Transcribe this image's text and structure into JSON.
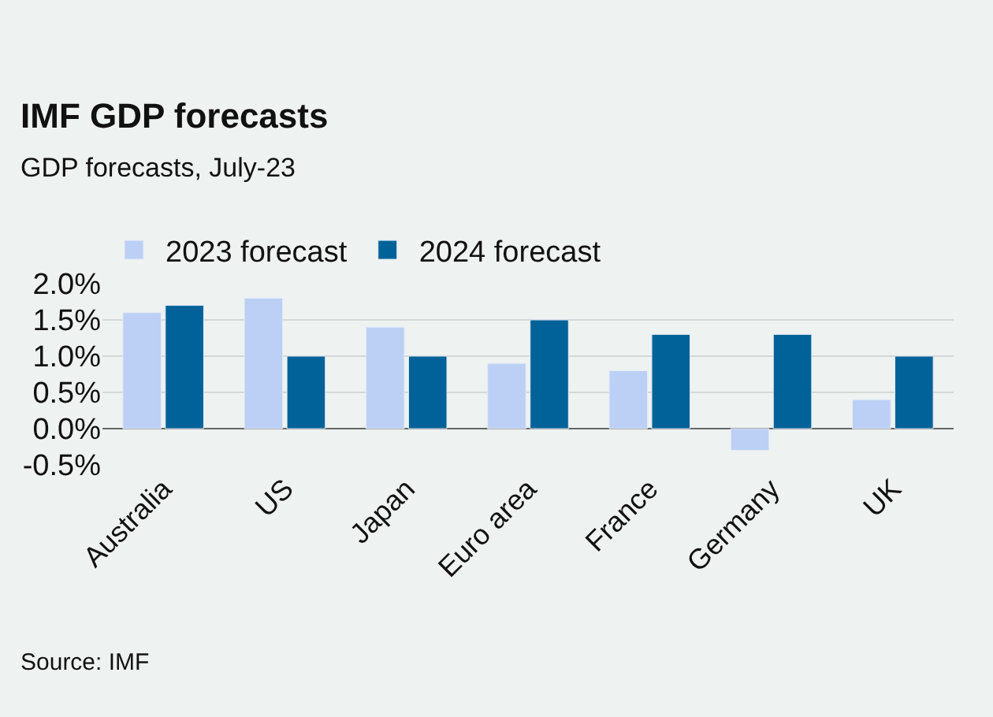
{
  "chart_data": {
    "type": "bar",
    "title": "IMF GDP forecasts",
    "subtitle": "GDP forecasts, July-23",
    "categories": [
      "Australia",
      "US",
      "Japan",
      "Euro area",
      "France",
      "Germany",
      "UK"
    ],
    "series": [
      {
        "name": "2023 forecast",
        "color": "#bcd0f5",
        "values": [
          1.6,
          1.8,
          1.4,
          0.9,
          0.8,
          -0.3,
          0.4
        ]
      },
      {
        "name": "2024 forecast",
        "color": "#006298",
        "values": [
          1.7,
          1.0,
          1.0,
          1.5,
          1.3,
          1.3,
          1.0
        ]
      }
    ],
    "ylim": [
      -0.5,
      2.0
    ],
    "yticks": [
      {
        "value": -0.5,
        "label": "-0.5%"
      },
      {
        "value": 0,
        "label": "0.0%"
      },
      {
        "value": 0.5,
        "label": "0.5%"
      },
      {
        "value": 1.0,
        "label": "1.0%"
      },
      {
        "value": 1.5,
        "label": "1.5%"
      },
      {
        "value": 2.0,
        "label": "2.0%"
      }
    ],
    "grid": "y",
    "legend": "top left",
    "annotations": [
      "Source: IMF"
    ]
  }
}
